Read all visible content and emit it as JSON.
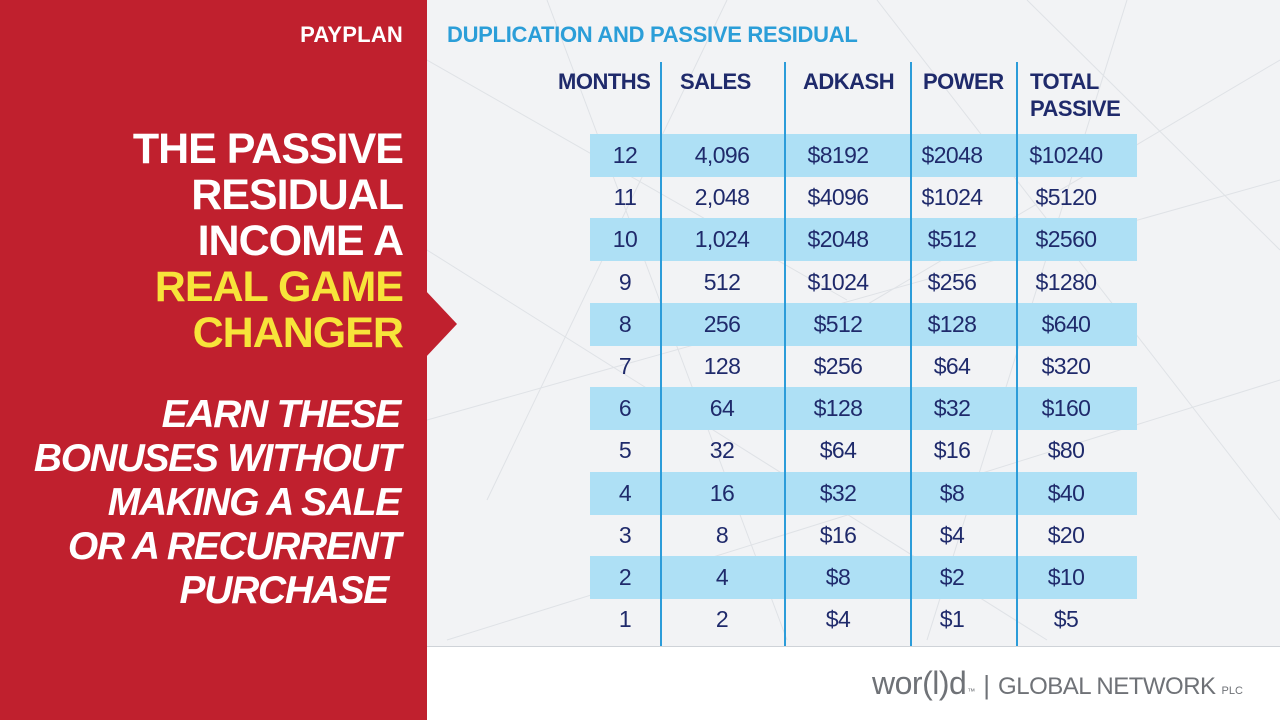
{
  "header": {
    "label": "PAYPLAN",
    "section_title": "DUPLICATION AND PASSIVE RESIDUAL"
  },
  "headline": {
    "line1": "THE PASSIVE",
    "line2": "RESIDUAL",
    "line3": "INCOME A",
    "line4": "REAL GAME",
    "line5": "CHANGER"
  },
  "subline": {
    "line1": "EARN THESE",
    "line2": "BONUSES WITHOUT",
    "line3": "MAKING A SALE",
    "line4": "OR A RECURRENT",
    "line5": "PURCHASE"
  },
  "table": {
    "columns": [
      "MONTHS",
      "SALES",
      "ADKASH",
      "POWER",
      "TOTAL",
      "PASSIVE"
    ],
    "rows": [
      [
        "12",
        "4,096",
        "$8192",
        "$2048",
        "$10240"
      ],
      [
        "11",
        "2,048",
        "$4096",
        "$1024",
        "$5120"
      ],
      [
        "10",
        "1,024",
        "$2048",
        "$512",
        "$2560"
      ],
      [
        "9",
        "512",
        "$1024",
        "$256",
        "$1280"
      ],
      [
        "8",
        "256",
        "$512",
        "$128",
        "$640"
      ],
      [
        "7",
        "128",
        "$256",
        "$64",
        "$320"
      ],
      [
        "6",
        "64",
        "$128",
        "$32",
        "$160"
      ],
      [
        "5",
        "32",
        "$64",
        "$16",
        "$80"
      ],
      [
        "4",
        "16",
        "$32",
        "$8",
        "$40"
      ],
      [
        "3",
        "8",
        "$16",
        "$4",
        "$20"
      ],
      [
        "2",
        "4",
        "$8",
        "$2",
        "$10"
      ],
      [
        "1",
        "2",
        "$4",
        "$1",
        "$5"
      ]
    ]
  },
  "footer": {
    "logo_world": "wor(l)d",
    "logo_tm": "™",
    "logo_separator": "|",
    "logo_company": "GLOBAL NETWORK",
    "logo_suffix": "PLC"
  },
  "colors": {
    "panel": "#c0202e",
    "highlight": "#f7e43a",
    "accent_blue": "#2c9cd9",
    "row_band": "#aee0f5",
    "text_navy": "#1f2a6b"
  }
}
